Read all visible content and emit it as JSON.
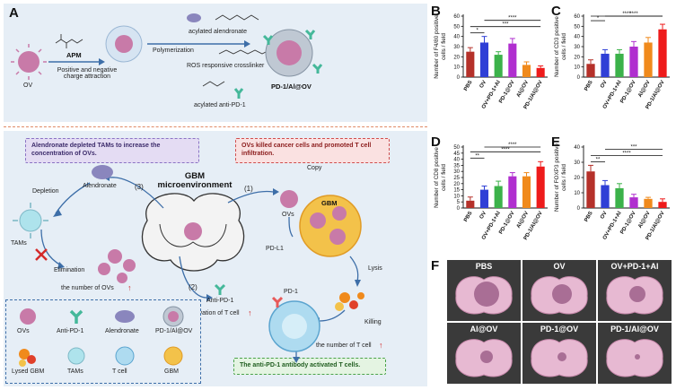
{
  "panelA": {
    "letter": "A",
    "ov_label": "OV",
    "step1": "APM",
    "step1_desc": "Positive and negative\ncharge attraction",
    "step2": "Polymerization",
    "reagent1": "acylated alendronate",
    "reagent2": "ROS responsive crosslinker",
    "reagent3": "acylated anti-PD-1",
    "product": "PD-1/Al@OV"
  },
  "mechanism": {
    "note_tam": "Alendronate depleted TAMs to increase the concentration of OVs.",
    "note_ov": "OVs killed cancer cells and promoted T cell infiltration.",
    "note_t": "The anti-PD-1 antibody  activated T cells.",
    "center": "GBM\nmicroenvironment",
    "step1": "(1)",
    "step2": "(2)",
    "step3": "(3)",
    "depletion": "Depletion",
    "alendronate": "Alendronate",
    "tams": "TAMs",
    "elimination": "Elimination",
    "num_ovs": "the number of OVs",
    "ovs": "OVs",
    "copy": "Copy",
    "gbm": "GBM",
    "pdl1": "PD-L1",
    "lysis": "Lysis",
    "pd1": "PD-1",
    "killing": "Killing",
    "anti_pd1": "Anti-PD-1",
    "activation": "Activation of T cell",
    "num_t": "the number of T cell",
    "up_arrow": "↑"
  },
  "legend": {
    "items": [
      "OVs",
      "Anti-PD-1",
      "Alendronate",
      "PD-1/Al@OV",
      "Lysed GBM",
      "TAMs",
      "T cell",
      "GBM"
    ]
  },
  "chart_data": [
    {
      "panel": "B",
      "type": "bar",
      "ylabel": "Number of F4/80 positive\ncells / field",
      "categories": [
        "PBS",
        "OV",
        "OV+PD-1+Al",
        "PD-1@OV",
        "Al@OV",
        "PD-1/Al@OV"
      ],
      "values": [
        25,
        34,
        22,
        33,
        12,
        9
      ],
      "errors": [
        4,
        6,
        3,
        5,
        3,
        2
      ],
      "ylim": [
        0,
        60
      ],
      "yticks": [
        0,
        10,
        20,
        30,
        40,
        50,
        60
      ],
      "significance": [
        "*",
        "***",
        "****"
      ]
    },
    {
      "panel": "C",
      "type": "bar",
      "ylabel": "Number of CD3 positive\ncells / field",
      "categories": [
        "PBS",
        "OV",
        "OV+PD-1+Al",
        "PD-1@OV",
        "Al@OV",
        "PD-1/Al@OV"
      ],
      "values": [
        13,
        23,
        23,
        30,
        34,
        47
      ],
      "errors": [
        4,
        4,
        4,
        5,
        5,
        5
      ],
      "ylim": [
        0,
        60
      ],
      "yticks": [
        0,
        10,
        20,
        30,
        40,
        50,
        60
      ],
      "significance": [
        "*",
        "****",
        "****"
      ]
    },
    {
      "panel": "D",
      "type": "bar",
      "ylabel": "Number of CD8 positive\ncells / field",
      "categories": [
        "PBS",
        "OV",
        "OV+PD-1+Al",
        "PD-1@OV",
        "Al@OV",
        "PD-1/Al@OV"
      ],
      "values": [
        6,
        15,
        18,
        26,
        26,
        34
      ],
      "errors": [
        3,
        3,
        4,
        3,
        3,
        4
      ],
      "ylim": [
        0,
        50
      ],
      "yticks": [
        0,
        5,
        10,
        15,
        20,
        25,
        30,
        35,
        40,
        45,
        50
      ],
      "significance": [
        "**",
        "****",
        "****"
      ]
    },
    {
      "panel": "E",
      "type": "bar",
      "ylabel": "Number of FOXP3 positive\ncells / field",
      "categories": [
        "PBS",
        "OV",
        "OV+PD-1+Al",
        "PD-1@OV",
        "Al@OV",
        "PD-1/Al@OV"
      ],
      "values": [
        24,
        15,
        13,
        7,
        6,
        4
      ],
      "errors": [
        4,
        3,
        3,
        2,
        1,
        2
      ],
      "ylim": [
        0,
        40
      ],
      "yticks": [
        0,
        10,
        20,
        30,
        40
      ],
      "significance": [
        "**",
        "****",
        "***"
      ]
    }
  ],
  "panelF": {
    "letter": "F",
    "labels": [
      "PBS",
      "OV",
      "OV+PD-1+Al",
      "Al@OV",
      "PD-1@OV",
      "PD-1/Al@OV"
    ]
  },
  "colors": {
    "bars": [
      "#b5312a",
      "#2f3fd6",
      "#3cb24a",
      "#b02fcf",
      "#f08a1c",
      "#ee1b1b"
    ],
    "ov": "#c87aa8",
    "brain": "#e7b9d2"
  }
}
